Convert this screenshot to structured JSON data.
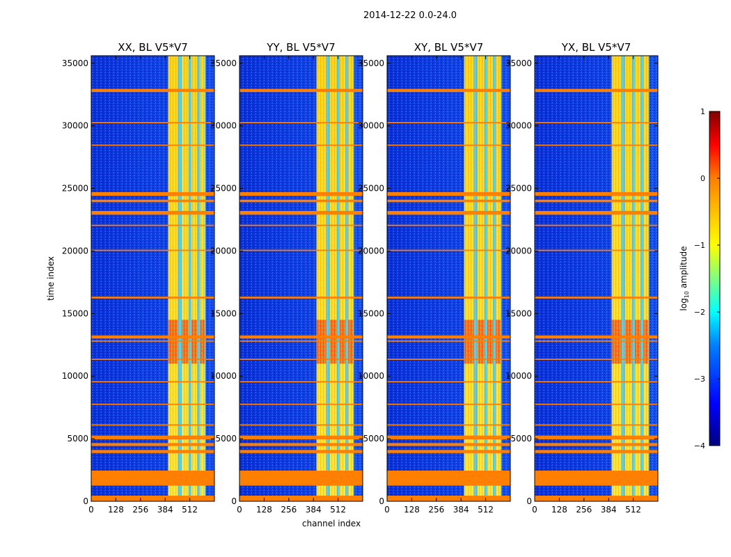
{
  "figure": {
    "suptitle": "2014-12-22 0.0-24.0",
    "xlabel": "channel index",
    "ylabel": "time index"
  },
  "chart_data": {
    "type": "heatmap",
    "x_ticks": [
      0,
      128,
      256,
      384,
      512
    ],
    "xlim": [
      0,
      640
    ],
    "y_ticks": [
      0,
      5000,
      10000,
      15000,
      20000,
      25000,
      30000,
      35000
    ],
    "ylim": [
      0,
      35600
    ],
    "panels": [
      {
        "title": "XX, BL V5*V7",
        "polarization": "XX",
        "baseline": "V5*V7"
      },
      {
        "title": "YY, BL V5*V7",
        "polarization": "YY",
        "baseline": "V5*V7"
      },
      {
        "title": "XY, BL V5*V7",
        "polarization": "XY",
        "baseline": "V5*V7"
      },
      {
        "title": "YX, BL V5*V7",
        "polarization": "YX",
        "baseline": "V5*V7"
      }
    ],
    "flagged_color": "#ff7f00",
    "flagged_time_rows": [
      [
        0,
        450
      ],
      [
        1250,
        2450
      ],
      [
        3850,
        4100
      ],
      [
        4420,
        4650
      ],
      [
        4950,
        5250
      ],
      [
        6050,
        6150
      ],
      [
        7700,
        7800
      ],
      [
        9500,
        9600
      ],
      [
        11300,
        11400
      ],
      [
        12750,
        12850
      ],
      [
        13000,
        13250
      ],
      [
        16200,
        16350
      ],
      [
        20000,
        20100
      ],
      [
        22000,
        22100
      ],
      [
        22900,
        23200
      ],
      [
        23900,
        24100
      ],
      [
        24400,
        24700
      ],
      [
        28400,
        28500
      ],
      [
        30200,
        30300
      ],
      [
        32700,
        32950
      ]
    ],
    "emission_band_channels": [
      400,
      595
    ],
    "emission_stripes": [
      {
        "from": 400,
        "to": 450
      },
      {
        "from": 470,
        "to": 505
      },
      {
        "from": 520,
        "to": 550
      },
      {
        "from": 565,
        "to": 590
      }
    ],
    "peak_time_range": [
      11000,
      14500
    ],
    "colorbar": {
      "label_prefix": "log",
      "label_sub": "10",
      "label_suffix": " amplitude",
      "min": -4,
      "max": 1,
      "ticks": [
        -4,
        -3,
        -2,
        -1,
        0,
        1
      ],
      "tick_labels": [
        "−4",
        "−3",
        "−2",
        "−1",
        "0",
        "1"
      ],
      "colormap": "jet",
      "stops": [
        "#00007f",
        "#0000ff",
        "#007fff",
        "#00ffff",
        "#7fff7f",
        "#ffff00",
        "#ff7f00",
        "#ff0000",
        "#7f0000"
      ]
    }
  }
}
